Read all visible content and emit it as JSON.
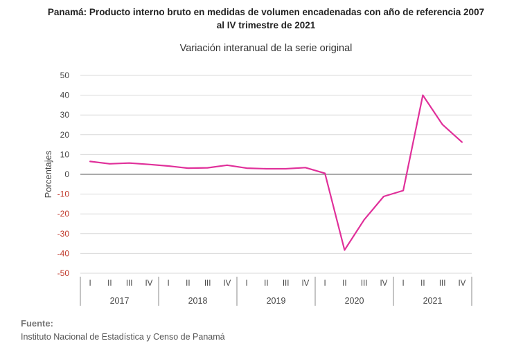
{
  "chart_data": {
    "type": "line",
    "title": "Panamá: Producto interno bruto en medidas  de volumen encadenadas con año de referencia 2007",
    "title_line2": "al IV trimestre de 2021",
    "subtitle": "Variación interanual de la serie original",
    "ylabel": "Porcentajes",
    "xlabel": "",
    "ylim": [
      -50,
      50
    ],
    "y_ticks": [
      50,
      40,
      30,
      20,
      10,
      0,
      -10,
      -20,
      -30,
      -40,
      -50
    ],
    "quarters": [
      "I",
      "II",
      "III",
      "IV"
    ],
    "years": [
      "2017",
      "2018",
      "2019",
      "2020",
      "2021"
    ],
    "series": [
      {
        "color": "#e0309a",
        "values": [
          6.5,
          5.3,
          5.7,
          5.0,
          4.2,
          3.1,
          3.3,
          4.6,
          3.1,
          2.8,
          2.8,
          3.4,
          0.5,
          -38.3,
          -23.0,
          -11.2,
          -8.2,
          40.0,
          25.2,
          16.3
        ]
      }
    ],
    "grid": true,
    "negative_tick_color": "#c0392b"
  },
  "source": {
    "label": "Fuente:",
    "text": "Instituto Nacional de Estadística y Censo de Panamá"
  }
}
